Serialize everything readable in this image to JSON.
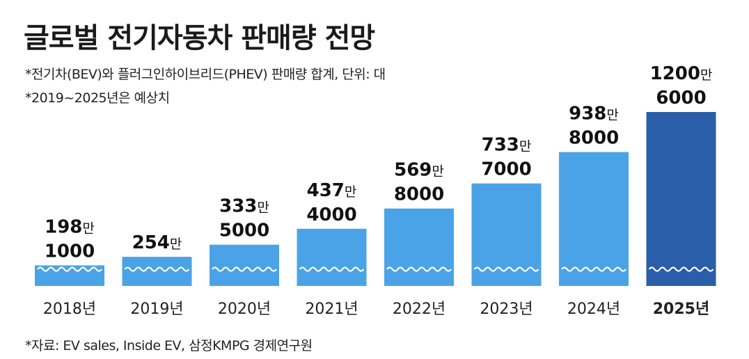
{
  "title": "글로벌 전기자동차 판매량 전망",
  "notes": [
    "*전기차(BEV)와 플러그인하이브리드(PHEV) 판매량 합계, 단위: 대",
    "*2019~2025년은 예상치"
  ],
  "source": "*자료: EV sales, Inside EV, 삼정KMPG 경제연구원",
  "colors": {
    "bar": "#4aa3e6",
    "bar_highlight": "#2a5ea8",
    "wave": "#ffffff"
  },
  "chart_data": {
    "type": "bar",
    "categories": [
      "2018년",
      "2019년",
      "2020년",
      "2021년",
      "2022년",
      "2023년",
      "2024년",
      "2025년"
    ],
    "values": [
      1981000,
      2540000,
      3335000,
      4374000,
      5698000,
      7337000,
      9388000,
      12006000
    ],
    "value_labels": [
      {
        "line1": "198",
        "unit": "만",
        "line2": "1000"
      },
      {
        "line1": "254",
        "unit": "만",
        "line2": ""
      },
      {
        "line1": "333",
        "unit": "만",
        "line2": "5000"
      },
      {
        "line1": "437",
        "unit": "만",
        "line2": "4000"
      },
      {
        "line1": "569",
        "unit": "만",
        "line2": "8000"
      },
      {
        "line1": "733",
        "unit": "만",
        "line2": "7000"
      },
      {
        "line1": "938",
        "unit": "만",
        "line2": "8000"
      },
      {
        "line1": "1200",
        "unit": "만",
        "line2": "6000"
      }
    ],
    "highlight_index": 7,
    "ylim": [
      0,
      12006000
    ],
    "grid": false,
    "legend": "none"
  }
}
